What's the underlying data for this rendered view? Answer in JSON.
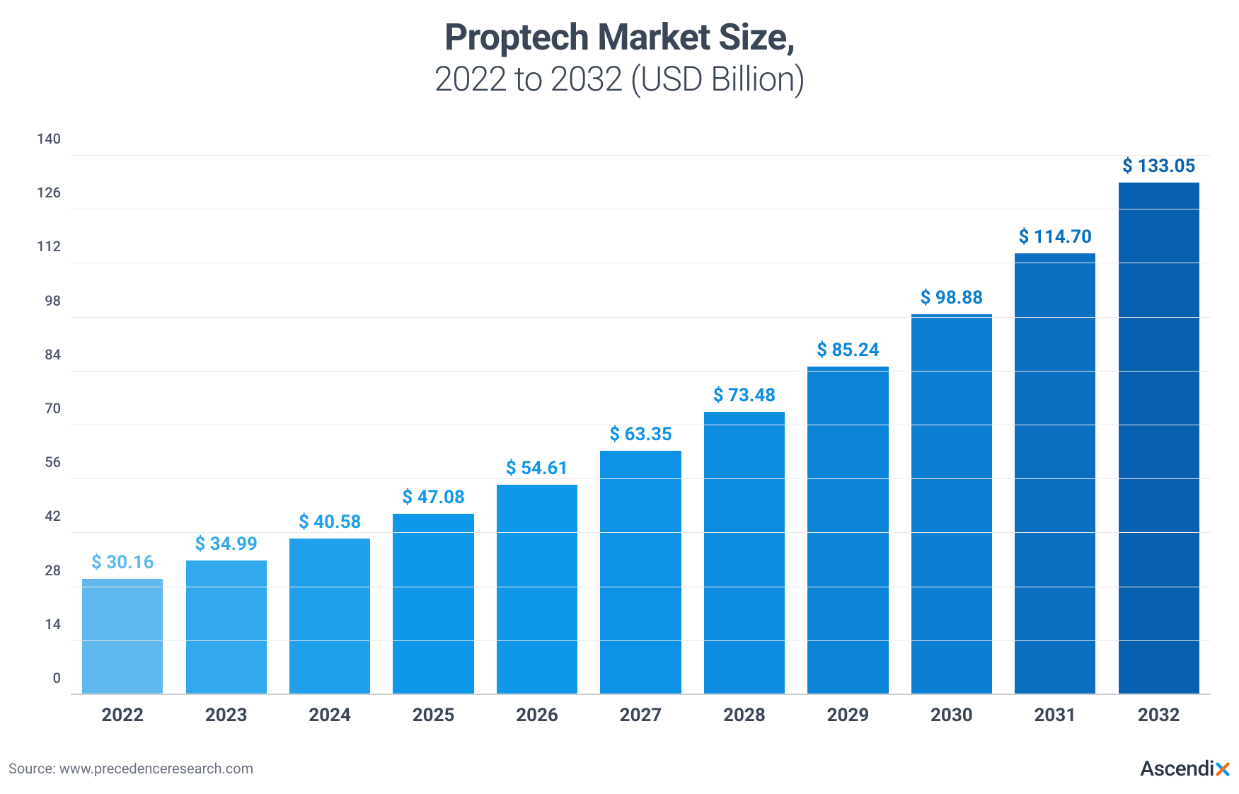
{
  "title": {
    "line1": "Proptech Market Size,",
    "line2": "2022 to 2032 (USD Billion)",
    "color": "#3a4556",
    "line1_fontsize": 52,
    "line2_fontsize": 48,
    "line1_weight": 700,
    "line2_weight": 300
  },
  "chart": {
    "type": "bar",
    "ylim": [
      0,
      140
    ],
    "ytick_step": 14,
    "yticks": [
      0,
      14,
      28,
      42,
      56,
      70,
      84,
      98,
      112,
      126,
      140
    ],
    "grid_color": "#e9e9eb",
    "axis_color": "#d0d0d4",
    "ylabel_color": "#4a5468",
    "ylabel_fontsize": 20,
    "xlabel_color": "#3a4556",
    "xlabel_fontsize": 26,
    "xlabel_weight": 700,
    "bar_width_ratio": 0.78,
    "value_label_fontsize": 26,
    "value_label_weight": 700,
    "background_color": "#ffffff",
    "categories": [
      "2022",
      "2023",
      "2024",
      "2025",
      "2026",
      "2027",
      "2028",
      "2029",
      "2030",
      "2031",
      "2032"
    ],
    "values": [
      30.16,
      34.99,
      40.58,
      47.08,
      54.61,
      63.35,
      73.48,
      85.24,
      98.88,
      114.7,
      133.05
    ],
    "value_labels": [
      "$ 30.16",
      "$ 34.99",
      "$ 40.58",
      "$ 47.08",
      "$ 54.61",
      "$ 63.35",
      "$ 73.48",
      "$ 85.24",
      "$ 98.88",
      "$ 114.70",
      "$ 133.05"
    ],
    "bar_colors": [
      "#5fb9ef",
      "#33a9ed",
      "#1ea0ec",
      "#0f98ea",
      "#0f98ea",
      "#0e92e6",
      "#0d8ce0",
      "#0c85d9",
      "#0b7fd1",
      "#0a6fc0",
      "#0960ae"
    ],
    "label_colors": [
      "#5fb9ef",
      "#33a9ed",
      "#1ea0ec",
      "#0f98ea",
      "#0f98ea",
      "#0e92e6",
      "#0d8ce0",
      "#0c85d9",
      "#0b7fd1",
      "#0a6fc0",
      "#0960ae"
    ]
  },
  "footer": {
    "source_prefix": "Source:  ",
    "source_url": "www.precedenceresearch.com",
    "source_color": "#6b7280",
    "source_fontsize": 20,
    "brand_main": "Ascendi",
    "brand_x": "x",
    "brand_main_color": "#2b3545",
    "brand_x_color1": "#0f98ea",
    "brand_x_color2": "#f37021",
    "brand_fontsize": 30
  }
}
